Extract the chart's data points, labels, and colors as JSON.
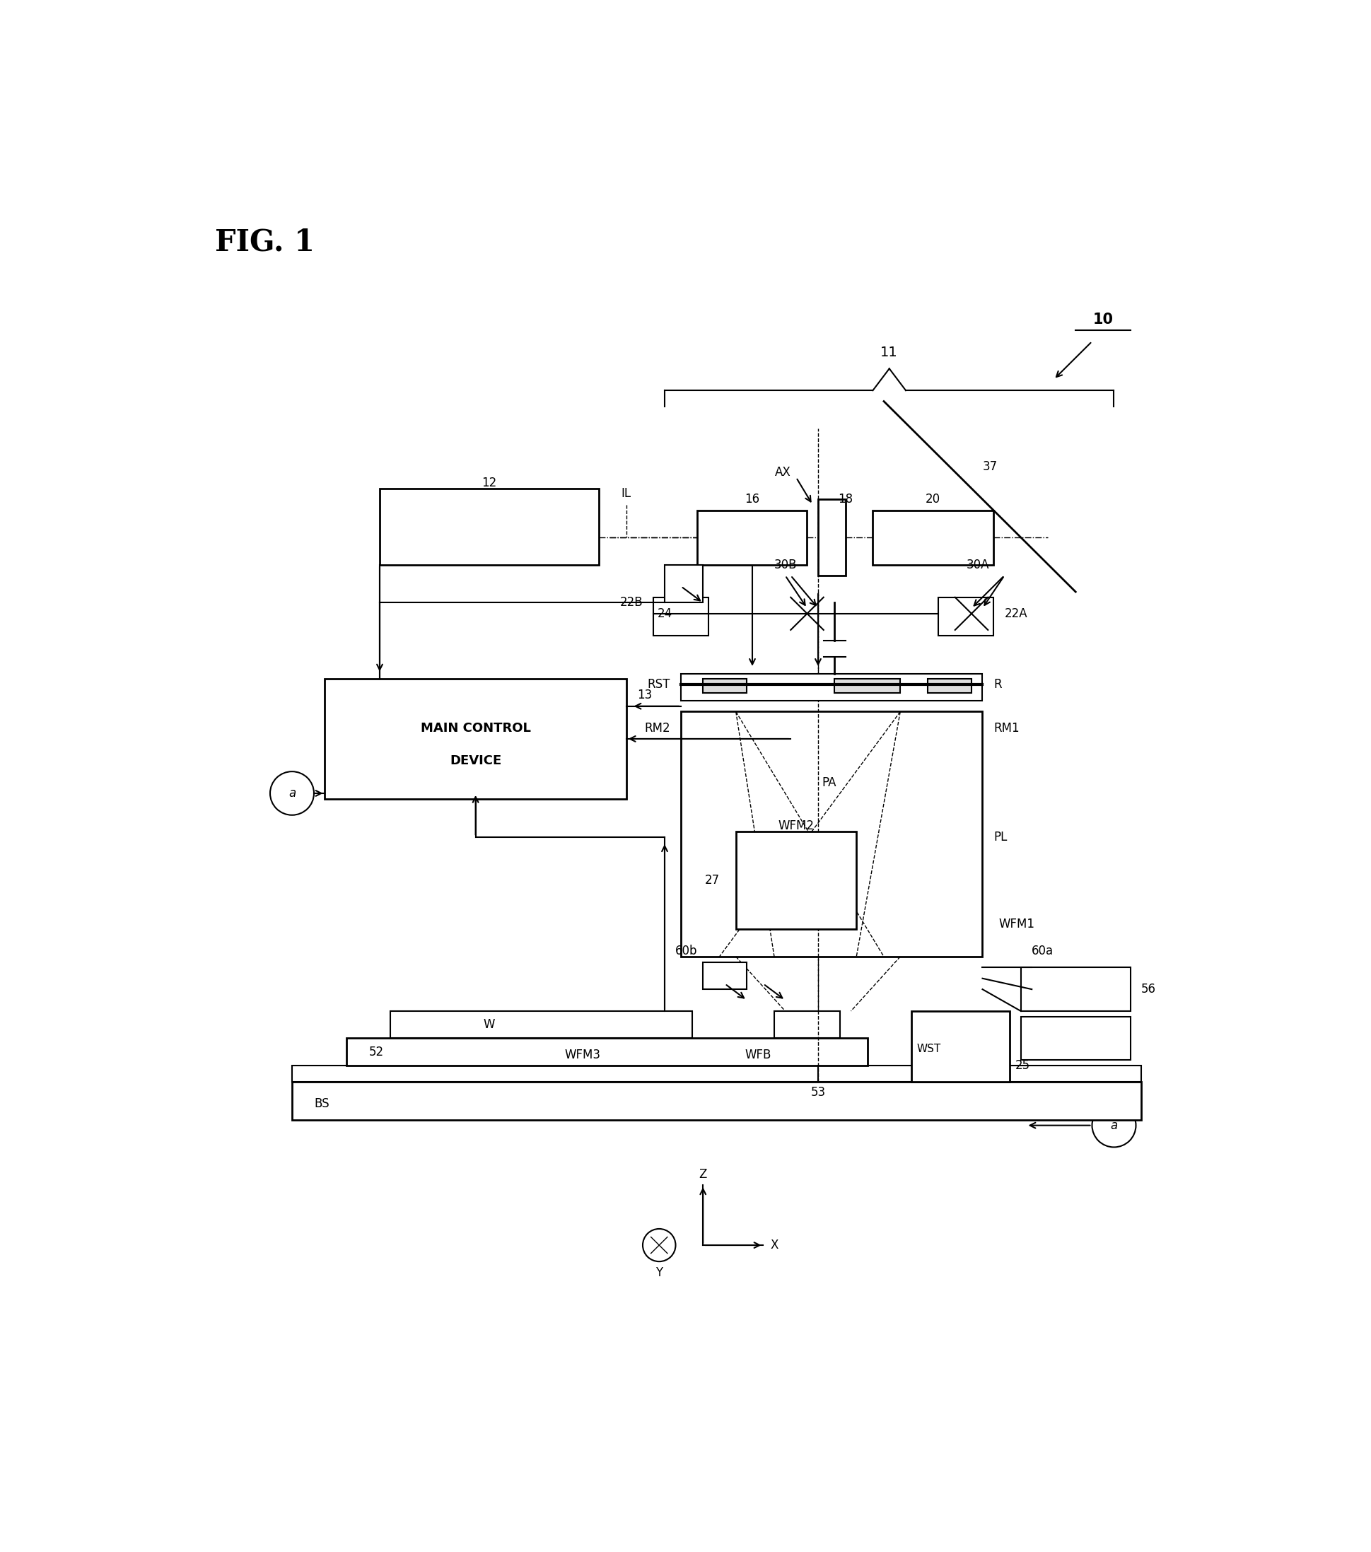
{
  "bg_color": "#ffffff",
  "fig_width": 19.4,
  "fig_height": 21.95,
  "labels": {
    "fig_title": "FIG. 1",
    "n10": "10",
    "n11": "11",
    "n12": "12",
    "n13": "13",
    "n16": "16",
    "n18": "18",
    "n20": "20",
    "n22A": "22A",
    "n22B": "22B",
    "n24": "24",
    "n25": "25",
    "n27": "27",
    "n30A": "30A",
    "n30B": "30B",
    "n37": "37",
    "n52": "52",
    "n53": "53",
    "n56": "56",
    "n60a": "60a",
    "n60b": "60b",
    "nIL": "IL",
    "nAX": "AX",
    "nR": "R",
    "nRST": "RST",
    "nRM1": "RM1",
    "nRM2": "RM2",
    "nPA": "PA",
    "nPL": "PL",
    "nWFM1": "WFM1",
    "nWFM2": "WFM2",
    "nWFM3": "WFM3",
    "nWFB": "WFB",
    "nWST": "WST",
    "nW": "W",
    "nBS": "BS",
    "nMCD1": "MAIN CONTROL",
    "nMCD2": "DEVICE",
    "na": "a",
    "nZ": "Z",
    "nX": "X",
    "nY": "Y"
  }
}
